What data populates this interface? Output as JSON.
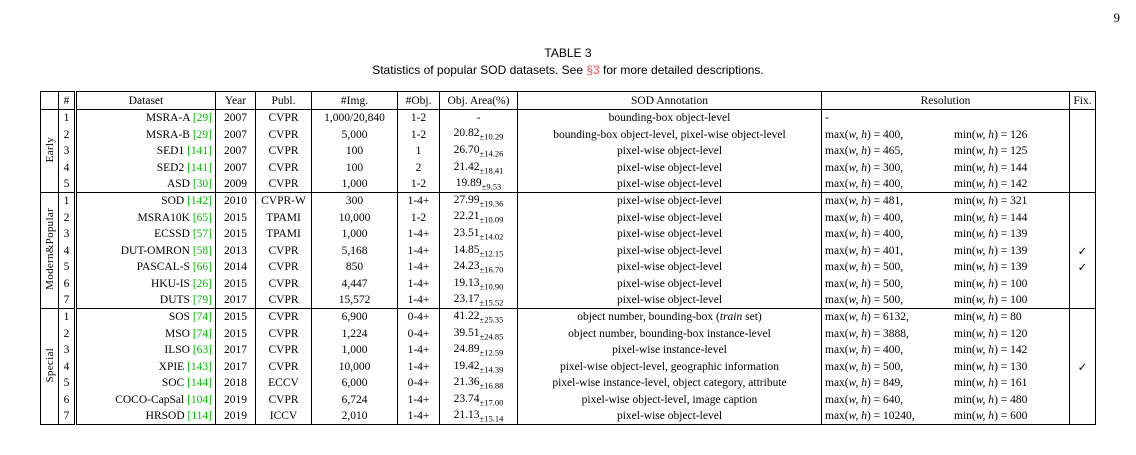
{
  "page_number": "9",
  "colors": {
    "citation_green": "#00bb00",
    "section_red": "#ee4444"
  },
  "caption": {
    "title": "TABLE 3",
    "pre": "Statistics of popular SOD datasets. See ",
    "link": "§3",
    "post": " for more detailed descriptions."
  },
  "table": {
    "headers": {
      "group": "",
      "num": "#",
      "dataset": "Dataset",
      "year": "Year",
      "publ": "Publ.",
      "img": "#Img.",
      "obj": "#Obj.",
      "area": "Obj. Area(%)",
      "annotation": "SOD Annotation",
      "resolution": "Resolution",
      "fix": "Fix."
    },
    "math": {
      "max": "max(",
      "min": "min(",
      "vars": "w, h",
      "close_eq": ") = "
    },
    "checkmark": "✓",
    "groups": [
      {
        "label": "Early",
        "rows": [
          {
            "num": "1",
            "name": "MSRA-A",
            "cite": "[29]",
            "year": "2007",
            "publ": "CVPR",
            "img": "1,000/20,840",
            "obj": "1-2",
            "area": "-",
            "area_sub": "",
            "ann": [
              {
                "t": "bounding-box object-level"
              }
            ],
            "res_max": "-",
            "res_min": "",
            "fix": false
          },
          {
            "num": "2",
            "name": "MSRA-B",
            "cite": "[29]",
            "year": "2007",
            "publ": "CVPR",
            "img": "5,000",
            "obj": "1-2",
            "area": "20.82",
            "area_sub": "±10.29",
            "ann": [
              {
                "t": "bounding-box object-level, pixel-wise object-level"
              }
            ],
            "res_max": "400",
            "res_min": "126",
            "fix": false
          },
          {
            "num": "3",
            "name": "SED1",
            "cite": "[141]",
            "year": "2007",
            "publ": "CVPR",
            "img": "100",
            "obj": "1",
            "area": "26.70",
            "area_sub": "±14.26",
            "ann": [
              {
                "t": "pixel-wise object-level"
              }
            ],
            "res_max": "465",
            "res_min": "125",
            "fix": false
          },
          {
            "num": "4",
            "name": "SED2",
            "cite": "[141]",
            "year": "2007",
            "publ": "CVPR",
            "img": "100",
            "obj": "2",
            "area": "21.42",
            "area_sub": "±18.41",
            "ann": [
              {
                "t": "pixel-wise object-level"
              }
            ],
            "res_max": "300",
            "res_min": "144",
            "fix": false
          },
          {
            "num": "5",
            "name": "ASD",
            "cite": "[30]",
            "year": "2009",
            "publ": "CVPR",
            "img": "1,000",
            "obj": "1-2",
            "area": "19.89",
            "area_sub": "±9.53",
            "ann": [
              {
                "t": "pixel-wise object-level"
              }
            ],
            "res_max": "400",
            "res_min": "142",
            "fix": false
          }
        ]
      },
      {
        "label": "Modern&Popular",
        "rows": [
          {
            "num": "1",
            "name": "SOD",
            "cite": "[142]",
            "year": "2010",
            "publ": "CVPR-W",
            "img": "300",
            "obj": "1-4+",
            "area": "27.99",
            "area_sub": "±19.36",
            "ann": [
              {
                "t": "pixel-wise object-level"
              }
            ],
            "res_max": "481",
            "res_min": "321",
            "fix": false
          },
          {
            "num": "2",
            "name": "MSRA10K",
            "cite": "[65]",
            "year": "2015",
            "publ": "TPAMI",
            "img": "10,000",
            "obj": "1-2",
            "area": "22.21",
            "area_sub": "±10.09",
            "ann": [
              {
                "t": "pixel-wise object-level"
              }
            ],
            "res_max": "400",
            "res_min": "144",
            "fix": false
          },
          {
            "num": "3",
            "name": "ECSSD",
            "cite": "[57]",
            "year": "2015",
            "publ": "TPAMI",
            "img": "1,000",
            "obj": "1-4+",
            "area": "23.51",
            "area_sub": "±14.02",
            "ann": [
              {
                "t": "pixel-wise object-level"
              }
            ],
            "res_max": "400",
            "res_min": "139",
            "fix": false
          },
          {
            "num": "4",
            "name": "DUT-OMRON",
            "cite": "[58]",
            "year": "2013",
            "publ": "CVPR",
            "img": "5,168",
            "obj": "1-4+",
            "area": "14.85",
            "area_sub": "±12.15",
            "ann": [
              {
                "t": "pixel-wise object-level"
              }
            ],
            "res_max": "401",
            "res_min": "139",
            "fix": true
          },
          {
            "num": "5",
            "name": "PASCAL-S",
            "cite": "[66]",
            "year": "2014",
            "publ": "CVPR",
            "img": "850",
            "obj": "1-4+",
            "area": "24.23",
            "area_sub": "±16.70",
            "ann": [
              {
                "t": "pixel-wise object-level"
              }
            ],
            "res_max": "500",
            "res_min": "139",
            "fix": true
          },
          {
            "num": "6",
            "name": "HKU-IS",
            "cite": "[26]",
            "year": "2015",
            "publ": "CVPR",
            "img": "4,447",
            "obj": "1-4+",
            "area": "19.13",
            "area_sub": "±10.90",
            "ann": [
              {
                "t": "pixel-wise object-level"
              }
            ],
            "res_max": "500",
            "res_min": "100",
            "fix": false
          },
          {
            "num": "7",
            "name": "DUTS",
            "cite": "[79]",
            "year": "2017",
            "publ": "CVPR",
            "img": "15,572",
            "obj": "1-4+",
            "area": "23.17",
            "area_sub": "±15.52",
            "ann": [
              {
                "t": "pixel-wise object-level"
              }
            ],
            "res_max": "500",
            "res_min": "100",
            "fix": false
          }
        ]
      },
      {
        "label": "Special",
        "rows": [
          {
            "num": "1",
            "name": "SOS",
            "cite": "[74]",
            "year": "2015",
            "publ": "CVPR",
            "img": "6,900",
            "obj": "0-4+",
            "area": "41.22",
            "area_sub": "±25.35",
            "ann": [
              {
                "t": "object number, bounding-box ("
              },
              {
                "t": "train",
                "i": true
              },
              {
                "t": " set)"
              }
            ],
            "res_max": "6132",
            "res_min": "80",
            "fix": false
          },
          {
            "num": "2",
            "name": "MSO",
            "cite": "[74]",
            "year": "2015",
            "publ": "CVPR",
            "img": "1,224",
            "obj": "0-4+",
            "area": "39.51",
            "area_sub": "±24.85",
            "ann": [
              {
                "t": "object number, bounding-box instance-level"
              }
            ],
            "res_max": "3888",
            "res_min": "120",
            "fix": false
          },
          {
            "num": "3",
            "name": "ILSO",
            "cite": "[63]",
            "year": "2017",
            "publ": "CVPR",
            "img": "1,000",
            "obj": "1-4+",
            "area": "24.89",
            "area_sub": "±12.59",
            "ann": [
              {
                "t": "pixel-wise instance-level"
              }
            ],
            "res_max": "400",
            "res_min": "142",
            "fix": false
          },
          {
            "num": "4",
            "name": "XPIE",
            "cite": "[143]",
            "year": "2017",
            "publ": "CVPR",
            "img": "10,000",
            "obj": "1-4+",
            "area": "19.42",
            "area_sub": "±14.39",
            "ann": [
              {
                "t": "pixel-wise object-level, geographic information"
              }
            ],
            "res_max": "500",
            "res_min": "130",
            "fix": true
          },
          {
            "num": "5",
            "name": "SOC",
            "cite": "[144]",
            "year": "2018",
            "publ": "ECCV",
            "img": "6,000",
            "obj": "0-4+",
            "area": "21.36",
            "area_sub": "±16.88",
            "ann": [
              {
                "t": "pixel-wise instance-level, object category, attribute"
              }
            ],
            "res_max": "849",
            "res_min": "161",
            "fix": false
          },
          {
            "num": "6",
            "name": "COCO-CapSal",
            "cite": "[104]",
            "year": "2019",
            "publ": "CVPR",
            "img": "6,724",
            "obj": "1-4+",
            "area": "23.74",
            "area_sub": "±17.00",
            "ann": [
              {
                "t": "pixel-wise object-level, image caption"
              }
            ],
            "res_max": "640",
            "res_min": "480",
            "fix": false
          },
          {
            "num": "7",
            "name": "HRSOD",
            "cite": "[114]",
            "year": "2019",
            "publ": "ICCV",
            "img": "2,010",
            "obj": "1-4+",
            "area": "21.13",
            "area_sub": "±15.14",
            "ann": [
              {
                "t": "pixel-wise object-level"
              }
            ],
            "res_max": "10240",
            "res_min": "600",
            "fix": false
          }
        ]
      }
    ]
  }
}
